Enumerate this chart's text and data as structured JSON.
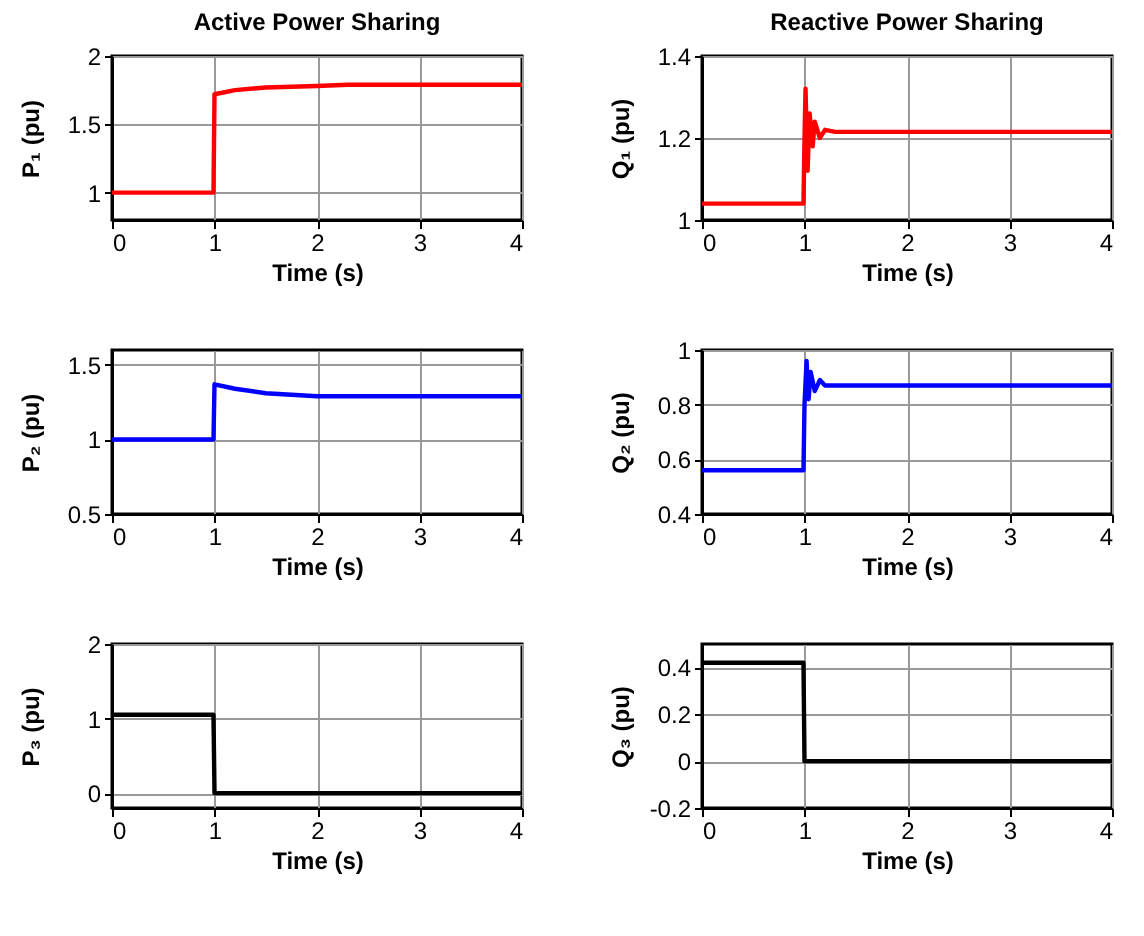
{
  "chart_data": [
    {
      "type": "line",
      "title": "Active Power Sharing",
      "xlabel": "Time (s)",
      "ylabel": "P₁ (pu)",
      "xlim": [
        0,
        4
      ],
      "xticks": [
        0,
        1,
        2,
        3,
        4
      ],
      "ylim": [
        0.8,
        2
      ],
      "yticks": [
        1,
        1.5,
        2
      ],
      "grid": true,
      "x": [
        0,
        0.99,
        1,
        1.2,
        1.5,
        2,
        2.3,
        4
      ],
      "series": [
        {
          "color": "#ff0000",
          "values": [
            1,
            1,
            1.72,
            1.75,
            1.77,
            1.78,
            1.79,
            1.79
          ]
        }
      ]
    },
    {
      "type": "line",
      "title": "Reactive Power Sharing",
      "xlabel": "Time (s)",
      "ylabel": "Q₁ (pu)",
      "xlim": [
        0,
        4
      ],
      "xticks": [
        0,
        1,
        2,
        3,
        4
      ],
      "ylim": [
        1,
        1.4
      ],
      "yticks": [
        1,
        1.2,
        1.4
      ],
      "grid": true,
      "x": [
        0,
        0.99,
        1,
        1.01,
        1.03,
        1.05,
        1.08,
        1.1,
        1.15,
        1.2,
        1.3,
        4
      ],
      "series": [
        {
          "color": "#ff0000",
          "values": [
            1.04,
            1.04,
            1.2,
            1.32,
            1.12,
            1.26,
            1.18,
            1.24,
            1.2,
            1.22,
            1.215,
            1.215
          ]
        }
      ]
    },
    {
      "type": "line",
      "xlabel": "Time (s)",
      "ylabel": "P₂ (pu)",
      "xlim": [
        0,
        4
      ],
      "xticks": [
        0,
        1,
        2,
        3,
        4
      ],
      "ylim": [
        0.5,
        1.6
      ],
      "yticks": [
        0.5,
        1,
        1.5
      ],
      "grid": true,
      "x": [
        0,
        0.99,
        1,
        1.2,
        1.5,
        2,
        4
      ],
      "series": [
        {
          "color": "#0000ff",
          "values": [
            1,
            1,
            1.37,
            1.34,
            1.31,
            1.29,
            1.29
          ]
        }
      ]
    },
    {
      "type": "line",
      "xlabel": "Time (s)",
      "ylabel": "Q₂ (pu)",
      "xlim": [
        0,
        4
      ],
      "xticks": [
        0,
        1,
        2,
        3,
        4
      ],
      "ylim": [
        0.4,
        1
      ],
      "yticks": [
        0.4,
        0.6,
        0.8,
        1
      ],
      "grid": true,
      "x": [
        0,
        0.99,
        1,
        1.02,
        1.04,
        1.06,
        1.1,
        1.15,
        1.2,
        4
      ],
      "series": [
        {
          "color": "#0000ff",
          "values": [
            0.56,
            0.56,
            0.8,
            0.96,
            0.82,
            0.92,
            0.85,
            0.89,
            0.87,
            0.87
          ]
        }
      ]
    },
    {
      "type": "line",
      "xlabel": "Time (s)",
      "ylabel": "P₃ (pu)",
      "xlim": [
        0,
        4
      ],
      "xticks": [
        0,
        1,
        2,
        3,
        4
      ],
      "ylim": [
        -0.2,
        2
      ],
      "yticks": [
        0,
        1,
        2
      ],
      "grid": true,
      "x": [
        0,
        0.99,
        1,
        4
      ],
      "series": [
        {
          "color": "#000000",
          "values": [
            1.05,
            1.05,
            0,
            0
          ]
        }
      ]
    },
    {
      "type": "line",
      "xlabel": "Time (s)",
      "ylabel": "Q₃ (pu)",
      "xlim": [
        0,
        4
      ],
      "xticks": [
        0,
        1,
        2,
        3,
        4
      ],
      "ylim": [
        -0.2,
        0.5
      ],
      "yticks": [
        -0.2,
        0,
        0.2,
        0.4
      ],
      "grid": true,
      "x": [
        0,
        0.99,
        1,
        4
      ],
      "series": [
        {
          "color": "#000000",
          "values": [
            0.42,
            0.42,
            0,
            0
          ]
        }
      ]
    }
  ]
}
